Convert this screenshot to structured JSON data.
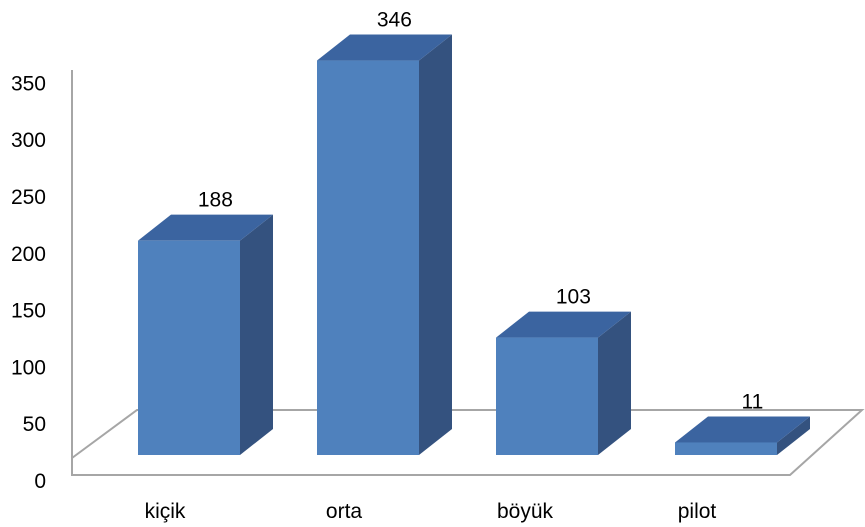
{
  "chart_data": {
    "type": "bar",
    "style": "3d-column",
    "categories": [
      "kiçik",
      "orta",
      "böyük",
      "pilot"
    ],
    "values": [
      188,
      346,
      103,
      11
    ],
    "data_labels": [
      "188",
      "346",
      "103",
      "11"
    ],
    "title": "",
    "xlabel": "",
    "ylabel": "",
    "ylim": [
      0,
      350
    ],
    "yticks": [
      0,
      50,
      100,
      150,
      200,
      250,
      300,
      350
    ],
    "ytick_labels": [
      "0",
      "50",
      "100",
      "150",
      "200",
      "250",
      "300",
      "350"
    ],
    "grid": false,
    "legend": "none",
    "colors": {
      "bar_front": "#4f81bd",
      "bar_top": "#3b64a0",
      "bar_side": "#34527f",
      "axis": "#a6a6a6"
    }
  }
}
